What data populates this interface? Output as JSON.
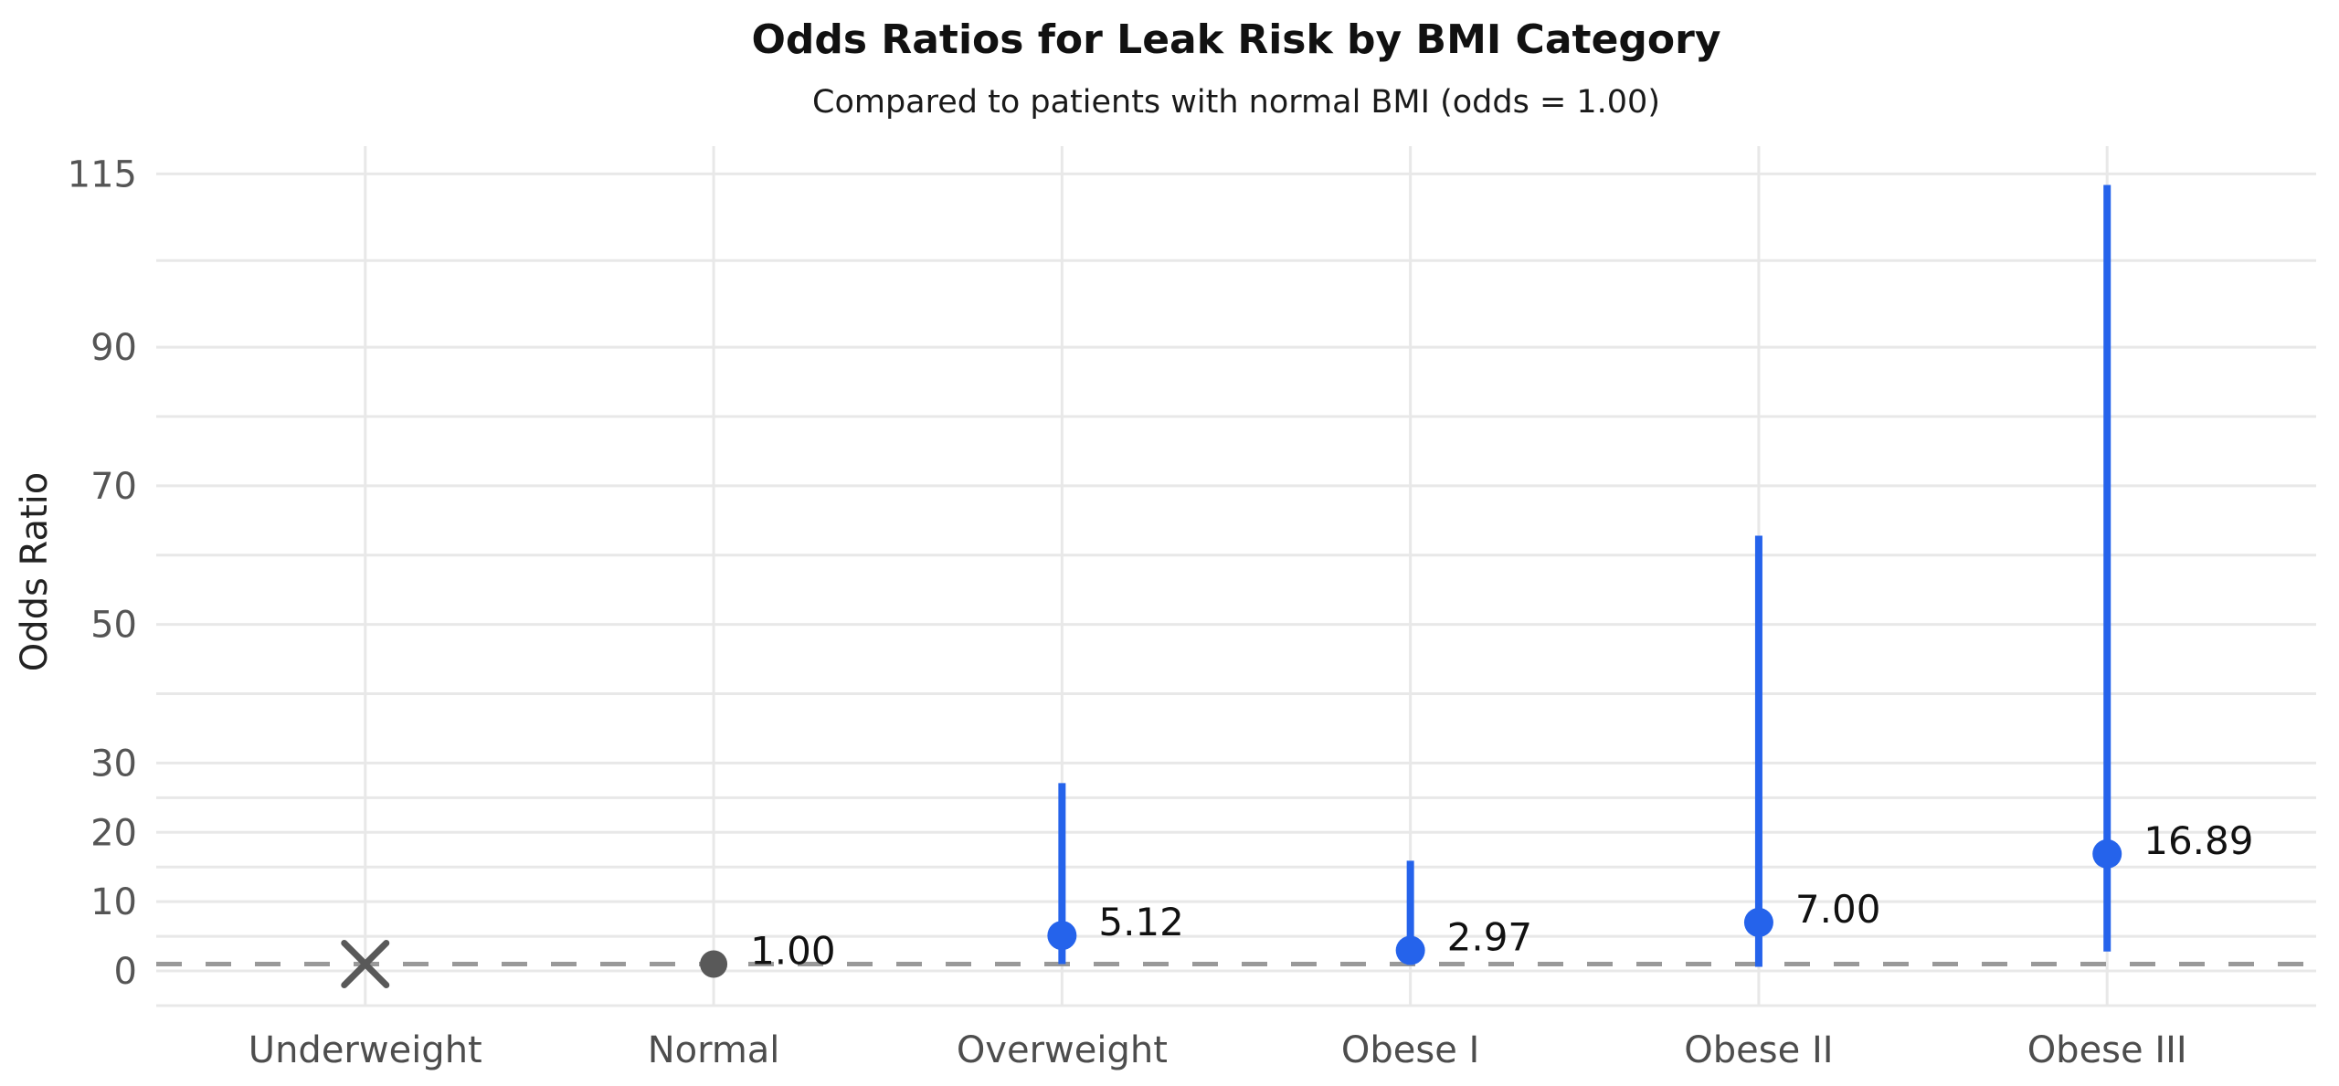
{
  "chart_data": {
    "type": "scatter",
    "title": "Odds Ratios for Leak Risk by BMI Category",
    "subtitle": "Compared to patients with normal BMI (odds = 1.00)",
    "ylabel": "Odds Ratio",
    "xlabel": "",
    "ylim": [
      -5,
      119
    ],
    "grid": true,
    "legend": "none",
    "categories": [
      "Underweight",
      "Normal",
      "Overweight",
      "Obese I",
      "Obese II",
      "Obese III"
    ],
    "yticks": {
      "major": [
        {
          "value": 0,
          "label": "0"
        },
        {
          "value": 10,
          "label": "10"
        },
        {
          "value": 20,
          "label": "20"
        },
        {
          "value": 30,
          "label": "30"
        },
        {
          "value": 50,
          "label": "50"
        },
        {
          "value": 70,
          "label": "70"
        },
        {
          "value": 90,
          "label": "90"
        },
        {
          "value": 115,
          "label": "115"
        }
      ],
      "minor": [
        -5,
        5,
        15,
        25,
        40,
        60,
        80,
        102.5
      ]
    },
    "reference_line": {
      "value": 1.0,
      "style": "dashed"
    },
    "points": [
      {
        "category": "Underweight",
        "marker": "x",
        "value": 1.0,
        "label": null,
        "ci_low": null,
        "ci_high": null,
        "color": "#595959"
      },
      {
        "category": "Normal",
        "marker": "circle",
        "value": 1.0,
        "label": "1.00",
        "ci_low": null,
        "ci_high": null,
        "color": "#595959"
      },
      {
        "category": "Overweight",
        "marker": "circle",
        "value": 5.12,
        "label": "5.12",
        "ci_low": 1.0,
        "ci_high": 27.1,
        "color": "#2563eb"
      },
      {
        "category": "Obese I",
        "marker": "circle",
        "value": 2.97,
        "label": "2.97",
        "ci_low": 0.9,
        "ci_high": 15.9,
        "color": "#2563eb"
      },
      {
        "category": "Obese II",
        "marker": "circle",
        "value": 7.0,
        "label": "7.00",
        "ci_low": 0.6,
        "ci_high": 62.8,
        "color": "#2563eb"
      },
      {
        "category": "Obese III",
        "marker": "circle",
        "value": 16.89,
        "label": "16.89",
        "ci_low": 2.8,
        "ci_high": 113.4,
        "color": "#2563eb"
      }
    ],
    "colors": {
      "accent": "#2563eb",
      "neutral": "#595959",
      "grid": "#e8e8e8",
      "reference": "#999999",
      "tick_text": "#555555",
      "category_text": "#4d4d4d",
      "annotation_text": "#111111"
    }
  }
}
